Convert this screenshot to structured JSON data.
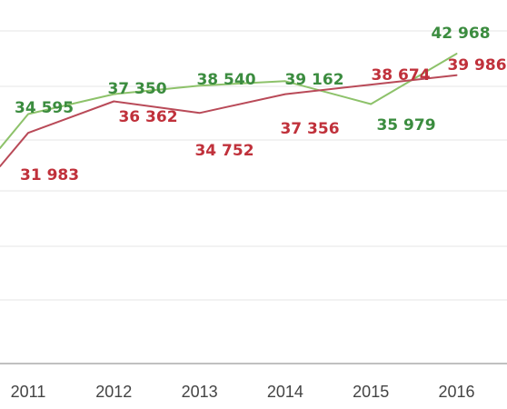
{
  "chart_data": {
    "type": "line",
    "title": "",
    "xlabel": "",
    "ylabel": "",
    "categories": [
      "2011",
      "2012",
      "2013",
      "2014",
      "2015",
      "2016"
    ],
    "ylim": [
      0,
      46000
    ],
    "grid": true,
    "legend": "none",
    "series": [
      {
        "values": [
          34595,
          37350,
          38540,
          39162,
          35979,
          42968
        ],
        "labels": [
          "34 595",
          "37 350",
          "38 540",
          "39 162",
          "35 979",
          "42 968"
        ],
        "color": "#8dc26a",
        "label_color": "#3b8c3f"
      },
      {
        "values": [
          31983,
          36362,
          34752,
          37356,
          38674,
          39986
        ],
        "labels": [
          "31 983",
          "36 362",
          "34 752",
          "37 356",
          "38 674",
          "39 986"
        ],
        "color": "#b94a58",
        "label_color": "#c0313b"
      }
    ]
  }
}
